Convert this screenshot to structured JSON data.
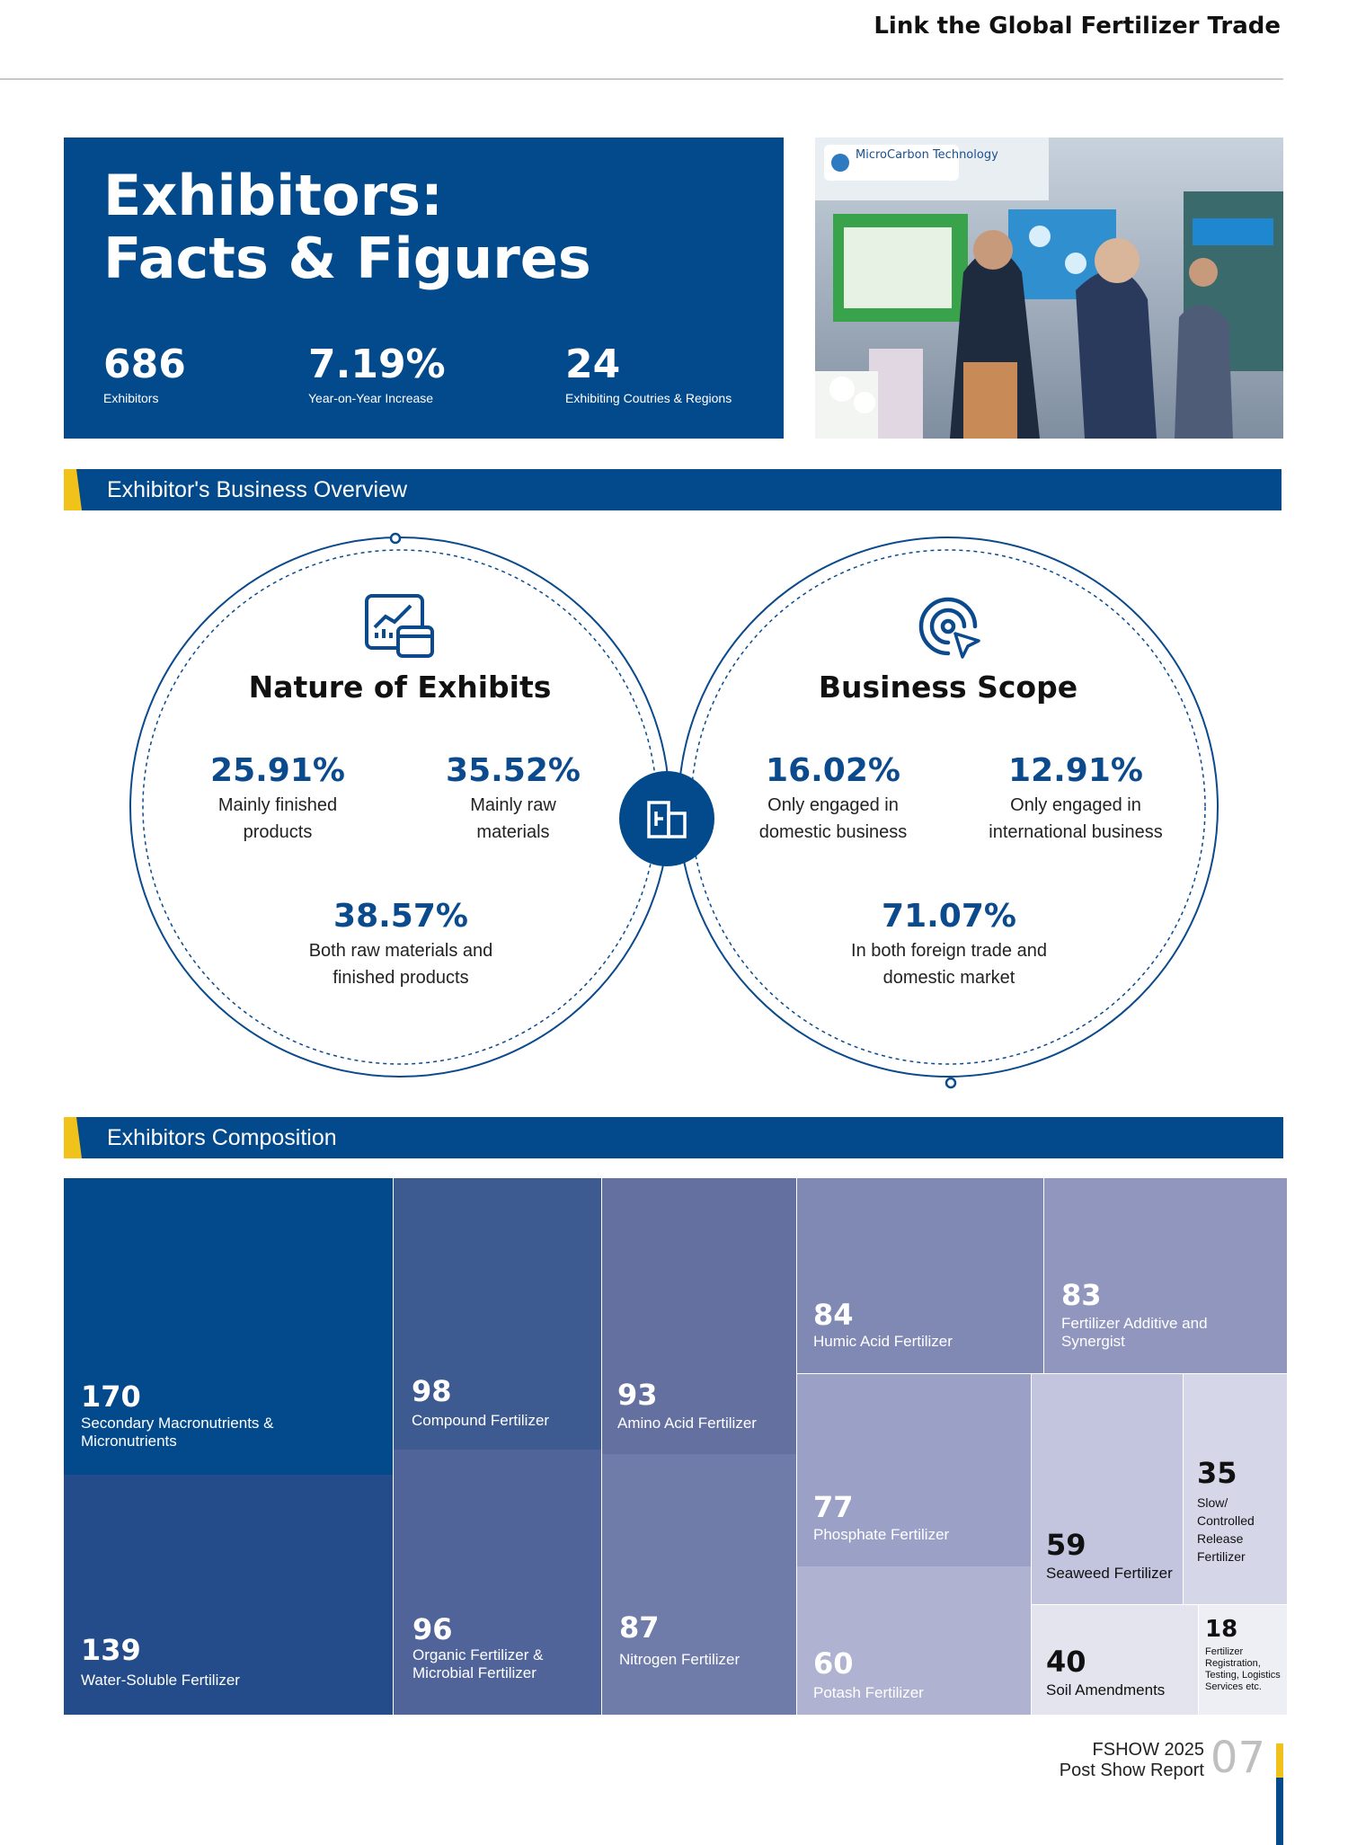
{
  "header": {
    "title": "Link the Global Fertilizer Trade"
  },
  "facts": {
    "title_line1": "Exhibitors:",
    "title_line2": "Facts & Figures",
    "stats": [
      {
        "value": "686",
        "label": "Exhibitors"
      },
      {
        "value": "7.19%",
        "label": "Year-on-Year Increase"
      },
      {
        "value": "24",
        "label": "Exhibiting Coutries & Regions"
      }
    ]
  },
  "photo": {
    "sign_text": "MicroCarbon Technology"
  },
  "sections": {
    "business_overview": "Exhibitor's Business Overview",
    "composition": "Exhibitors Composition"
  },
  "nature": {
    "heading": "Nature of Exhibits",
    "icon": "chart-window-icon",
    "items": [
      {
        "value": "25.91%",
        "line1": "Mainly finished",
        "line2": "products"
      },
      {
        "value": "35.52%",
        "line1": "Mainly raw",
        "line2": "materials"
      },
      {
        "value": "38.57%",
        "line1": "Both raw materials and",
        "line2": "finished products"
      }
    ]
  },
  "center_icon": "building-icon",
  "scope": {
    "heading": "Business Scope",
    "icon": "target-cursor-icon",
    "items": [
      {
        "value": "16.02%",
        "line1": "Only engaged in",
        "line2": "domestic business"
      },
      {
        "value": "12.91%",
        "line1": "Only engaged in",
        "line2": "international business"
      },
      {
        "value": "71.07%",
        "line1": "In both foreign trade and",
        "line2": "domestic market"
      }
    ]
  },
  "composition": [
    {
      "value": "170",
      "label": "Secondary Macronutrients & Micronutrients",
      "color": "#034a8c"
    },
    {
      "value": "139",
      "label": "Water-Soluble Fertilizer",
      "color": "#244c8a"
    },
    {
      "value": "98",
      "label": "Compound Fertilizer",
      "color": "#3d5a91"
    },
    {
      "value": "96",
      "label": "Organic Fertilizer & Microbial Fertilizer",
      "color": "#506499"
    },
    {
      "value": "93",
      "label": "Amino Acid Fertilizer",
      "color": "#6370a0"
    },
    {
      "value": "87",
      "label": "Nitrogen Fertilizer",
      "color": "#6f7ba8"
    },
    {
      "value": "84",
      "label": "Humic Acid Fertilizer",
      "color": "#8088b4"
    },
    {
      "value": "83",
      "label": "Fertilizer Additive and Synergist",
      "color": "#9096bd"
    },
    {
      "value": "77",
      "label": "Phosphate Fertilizer",
      "color": "#9ba1c6"
    },
    {
      "value": "60",
      "label": "Potash Fertilizer",
      "color": "#afb2d1"
    },
    {
      "value": "59",
      "label": "Seaweed Fertilizer",
      "color": "#c3c5de"
    },
    {
      "value": "35",
      "label": "Slow/ Controlled Release Fertilizer",
      "color": "#d5d6e8"
    },
    {
      "value": "40",
      "label": "Soil Amendments",
      "color": "#e4e4ef"
    },
    {
      "value": "18",
      "label": "Fertilizer Registration, Testing, Logistics Services etc.",
      "color": "#eeeef5"
    }
  ],
  "footer": {
    "line1": "FSHOW 2025",
    "line2": "Post Show Report",
    "page": "07"
  }
}
